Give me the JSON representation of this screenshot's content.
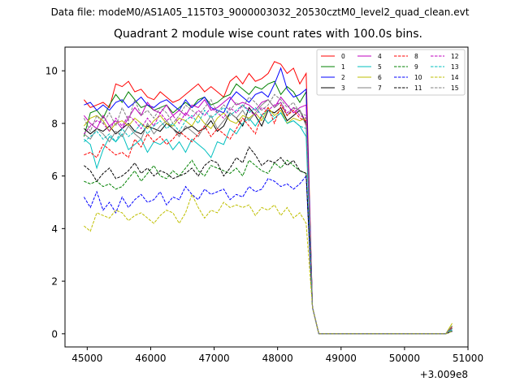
{
  "chart_data": {
    "type": "line",
    "suptitle": "Data file: modeM0/AS1A05_115T03_9000003032_20530cztM0_level2_quad_clean.evt",
    "title": "Quadrant 2 module wise count rates with 100.0s bins.",
    "xlabel": "",
    "ylabel": "",
    "x_offset_label": "+3.009e8",
    "x_offset": 300900000,
    "xlim": [
      44650,
      51000
    ],
    "ylim": [
      -0.5,
      10.9
    ],
    "x_ticks": [
      45000,
      46000,
      47000,
      48000,
      49000,
      50000,
      51000
    ],
    "x_tick_labels": [
      "45000",
      "46000",
      "47000",
      "48000",
      "49000",
      "50000",
      "51000"
    ],
    "y_ticks": [
      0,
      2,
      4,
      6,
      8,
      10
    ],
    "y_tick_labels": [
      "0",
      "2",
      "4",
      "6",
      "8",
      "10"
    ],
    "grid": false,
    "legend_location": "upper right",
    "legend_columns": 4,
    "x": [
      44950,
      45050,
      45150,
      45250,
      45350,
      45450,
      45550,
      45650,
      45750,
      45850,
      45950,
      46050,
      46150,
      46250,
      46350,
      46450,
      46550,
      46650,
      46750,
      46850,
      46950,
      47050,
      47150,
      47250,
      47350,
      47450,
      47550,
      47650,
      47750,
      47850,
      47950,
      48050,
      48150,
      48250,
      48350,
      48450,
      48550,
      48650,
      50650,
      50750
    ],
    "series": [
      {
        "name": "0",
        "color": "#ff0000",
        "dash": "solid",
        "values": [
          8.9,
          8.6,
          8.7,
          8.8,
          8.6,
          9.5,
          9.4,
          9.6,
          9.2,
          9.3,
          9.0,
          8.9,
          9.2,
          9.0,
          8.8,
          8.9,
          9.1,
          9.3,
          9.5,
          9.2,
          9.4,
          9.2,
          9.0,
          9.6,
          9.8,
          9.5,
          9.9,
          9.6,
          9.7,
          9.9,
          10.35,
          10.25,
          9.9,
          10.1,
          9.5,
          9.9,
          1.0,
          0.0,
          0.0,
          0.25
        ]
      },
      {
        "name": "1",
        "color": "#008000",
        "dash": "solid",
        "values": [
          7.5,
          8.4,
          8.5,
          8.2,
          8.7,
          9.1,
          8.8,
          9.2,
          8.9,
          8.6,
          8.7,
          8.5,
          8.6,
          8.7,
          8.4,
          8.6,
          8.8,
          8.6,
          8.9,
          9.0,
          8.7,
          8.8,
          9.0,
          9.1,
          9.5,
          9.3,
          9.1,
          9.4,
          9.3,
          9.5,
          9.6,
          9.1,
          9.4,
          9.2,
          8.8,
          9.2,
          1.0,
          0.0,
          0.0,
          0.3
        ]
      },
      {
        "name": "2",
        "color": "#0000ff",
        "dash": "solid",
        "values": [
          8.7,
          8.8,
          8.5,
          8.7,
          8.5,
          8.8,
          8.9,
          8.6,
          8.8,
          9.0,
          8.7,
          8.6,
          8.8,
          8.9,
          8.7,
          8.5,
          8.9,
          8.6,
          8.8,
          9.0,
          8.6,
          8.5,
          8.4,
          8.9,
          9.2,
          9.0,
          8.8,
          9.1,
          9.2,
          9.0,
          9.5,
          10.1,
          9.3,
          9.0,
          9.1,
          9.3,
          1.0,
          0.0,
          0.0,
          0.2
        ]
      },
      {
        "name": "3",
        "color": "#000000",
        "dash": "solid",
        "values": [
          7.8,
          7.6,
          7.8,
          7.7,
          7.9,
          7.6,
          7.8,
          8.0,
          7.7,
          7.6,
          7.9,
          7.8,
          7.7,
          8.0,
          7.8,
          7.6,
          7.8,
          7.9,
          7.7,
          7.8,
          8.1,
          7.7,
          7.9,
          8.4,
          8.2,
          7.9,
          8.6,
          8.3,
          7.9,
          8.5,
          8.4,
          8.6,
          8.1,
          8.3,
          8.5,
          8.0,
          1.0,
          0.0,
          0.0,
          0.2
        ]
      },
      {
        "name": "4",
        "color": "#bf00bf",
        "dash": "solid",
        "values": [
          8.3,
          8.0,
          7.8,
          8.3,
          7.9,
          8.1,
          7.8,
          8.2,
          8.6,
          8.3,
          8.8,
          8.5,
          8.4,
          8.7,
          8.3,
          8.5,
          8.3,
          8.7,
          8.6,
          8.9,
          8.5,
          8.6,
          8.8,
          9.0,
          8.7,
          8.8,
          8.7,
          8.5,
          8.8,
          8.9,
          8.6,
          9.0,
          8.7,
          8.4,
          8.6,
          8.7,
          1.0,
          0.0,
          0.0,
          0.2
        ]
      },
      {
        "name": "5",
        "color": "#00bfbf",
        "dash": "solid",
        "values": [
          7.4,
          7.2,
          6.3,
          7.0,
          7.5,
          7.3,
          7.6,
          7.0,
          7.2,
          7.4,
          6.9,
          7.3,
          7.2,
          7.4,
          7.0,
          7.3,
          6.9,
          7.4,
          7.2,
          7.0,
          6.7,
          7.3,
          7.2,
          7.8,
          7.6,
          8.0,
          8.2,
          7.9,
          8.3,
          8.0,
          8.2,
          8.4,
          8.0,
          8.1,
          7.9,
          7.5,
          1.0,
          0.0,
          0.0,
          0.15
        ]
      },
      {
        "name": "6",
        "color": "#bfbf00",
        "dash": "solid",
        "values": [
          7.9,
          8.2,
          8.3,
          8.1,
          7.7,
          8.0,
          8.1,
          7.9,
          8.2,
          8.0,
          7.8,
          8.1,
          8.3,
          8.0,
          7.9,
          8.2,
          8.1,
          7.9,
          8.3,
          8.0,
          7.8,
          8.2,
          8.4,
          8.1,
          8.0,
          8.3,
          8.2,
          8.4,
          8.1,
          8.6,
          8.3,
          8.5,
          8.0,
          8.2,
          8.1,
          8.2,
          1.0,
          0.0,
          0.0,
          0.4
        ]
      },
      {
        "name": "7",
        "color": "#808080",
        "dash": "solid",
        "values": [
          7.6,
          7.4,
          7.8,
          7.6,
          7.3,
          7.7,
          7.5,
          7.9,
          7.6,
          7.4,
          8.0,
          7.6,
          7.9,
          8.1,
          7.8,
          7.5,
          7.9,
          7.7,
          7.5,
          7.9,
          8.3,
          7.8,
          8.1,
          8.4,
          8.2,
          8.5,
          8.1,
          8.4,
          8.7,
          8.9,
          8.6,
          8.8,
          8.3,
          8.6,
          8.5,
          7.9,
          1.0,
          0.0,
          0.0,
          0.3
        ]
      },
      {
        "name": "8",
        "color": "#ff0000",
        "dash": "dashed",
        "values": [
          6.8,
          6.9,
          6.7,
          7.2,
          7.0,
          6.8,
          6.9,
          6.7,
          7.4,
          7.1,
          7.6,
          7.3,
          7.5,
          7.2,
          7.4,
          7.7,
          7.5,
          7.3,
          7.6,
          7.9,
          7.5,
          7.8,
          7.6,
          7.4,
          7.8,
          8.2,
          7.9,
          7.6,
          8.3,
          8.6,
          8.0,
          8.7,
          8.3,
          8.5,
          8.2,
          8.1,
          1.0,
          0.0,
          0.0,
          0.1
        ]
      },
      {
        "name": "9",
        "color": "#008000",
        "dash": "dashed",
        "values": [
          5.8,
          5.7,
          5.8,
          5.6,
          5.7,
          5.5,
          5.6,
          5.9,
          6.2,
          5.8,
          6.1,
          6.4,
          6.0,
          5.9,
          6.2,
          6.0,
          6.3,
          6.6,
          6.2,
          6.0,
          6.4,
          6.3,
          6.2,
          6.1,
          6.3,
          6.0,
          6.6,
          6.4,
          6.2,
          6.1,
          6.5,
          6.3,
          6.6,
          6.4,
          6.2,
          6.1,
          1.0,
          0.0,
          0.0,
          0.1
        ]
      },
      {
        "name": "10",
        "color": "#0000ff",
        "dash": "dashed",
        "values": [
          5.2,
          4.8,
          5.4,
          4.7,
          5.0,
          4.6,
          5.2,
          4.8,
          5.1,
          5.3,
          5.0,
          5.1,
          5.4,
          4.9,
          5.2,
          5.1,
          5.6,
          5.3,
          5.1,
          5.5,
          5.3,
          5.4,
          5.5,
          5.1,
          5.3,
          5.2,
          5.6,
          5.4,
          5.5,
          5.9,
          5.8,
          5.6,
          5.7,
          5.5,
          5.7,
          6.0,
          1.0,
          0.0,
          0.0,
          0.1
        ]
      },
      {
        "name": "11",
        "color": "#000000",
        "dash": "dashed",
        "values": [
          6.4,
          6.2,
          5.8,
          6.1,
          6.3,
          5.9,
          6.0,
          6.2,
          6.5,
          6.1,
          6.3,
          6.0,
          6.2,
          6.1,
          5.9,
          6.0,
          6.1,
          6.3,
          6.0,
          6.4,
          6.6,
          6.5,
          6.0,
          6.3,
          6.7,
          6.5,
          7.1,
          6.8,
          6.4,
          6.6,
          6.5,
          6.7,
          6.4,
          6.6,
          6.2,
          6.1,
          1.0,
          0.0,
          0.0,
          0.1
        ]
      },
      {
        "name": "12",
        "color": "#bf00bf",
        "dash": "dashed",
        "values": [
          7.6,
          7.9,
          8.1,
          8.0,
          7.7,
          8.2,
          7.9,
          8.3,
          8.1,
          7.8,
          8.2,
          7.9,
          8.4,
          8.1,
          8.3,
          8.0,
          8.4,
          8.2,
          8.5,
          8.3,
          8.6,
          8.4,
          8.2,
          8.6,
          8.4,
          8.7,
          8.5,
          8.3,
          8.6,
          8.5,
          8.7,
          8.8,
          8.4,
          8.6,
          8.3,
          8.2,
          1.0,
          0.0,
          0.0,
          0.2
        ]
      },
      {
        "name": "13",
        "color": "#00bfbf",
        "dash": "dashed",
        "values": [
          7.3,
          7.5,
          7.7,
          7.4,
          7.6,
          7.3,
          7.8,
          7.5,
          7.7,
          8.0,
          7.6,
          7.9,
          8.1,
          7.8,
          8.0,
          7.7,
          8.1,
          8.3,
          8.0,
          8.5,
          8.2,
          8.4,
          8.6,
          8.3,
          8.5,
          8.7,
          8.4,
          8.6,
          8.3,
          8.5,
          8.2,
          8.4,
          8.0,
          8.1,
          7.9,
          7.8,
          1.0,
          0.0,
          0.0,
          0.2
        ]
      },
      {
        "name": "14",
        "color": "#bfbf00",
        "dash": "dashed",
        "values": [
          4.1,
          3.9,
          4.6,
          4.5,
          4.4,
          4.7,
          4.6,
          4.3,
          4.5,
          4.6,
          4.4,
          4.2,
          4.5,
          4.7,
          4.6,
          4.2,
          4.6,
          5.3,
          4.8,
          4.4,
          4.7,
          4.6,
          5.0,
          4.8,
          4.9,
          4.8,
          4.9,
          4.5,
          4.8,
          4.7,
          4.9,
          4.5,
          4.8,
          4.4,
          4.6,
          4.2,
          1.0,
          0.0,
          0.0,
          0.1
        ]
      },
      {
        "name": "15",
        "color": "#808080",
        "dash": "dashed",
        "values": [
          8.2,
          7.7,
          8.3,
          8.0,
          8.4,
          7.9,
          8.6,
          8.1,
          8.9,
          8.3,
          8.5,
          8.2,
          8.6,
          8.4,
          8.0,
          8.3,
          8.7,
          8.5,
          8.3,
          8.6,
          8.9,
          8.4,
          8.7,
          8.5,
          8.8,
          8.6,
          9.0,
          8.8,
          8.5,
          8.7,
          9.1,
          8.9,
          8.6,
          8.8,
          8.4,
          8.3,
          1.0,
          0.0,
          0.0,
          0.2
        ]
      }
    ]
  }
}
